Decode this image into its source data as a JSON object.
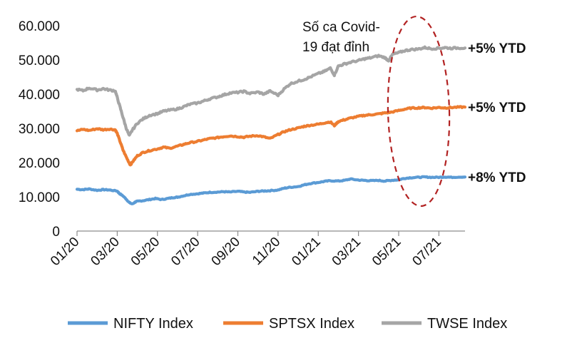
{
  "chart_data": {
    "type": "line",
    "title": "",
    "xlabel": "",
    "ylabel": "",
    "ylim": [
      0,
      60000
    ],
    "y_ticks": [
      0,
      10000,
      20000,
      30000,
      40000,
      50000,
      60000
    ],
    "y_tick_labels": [
      "0",
      "10.000",
      "20.000",
      "30.000",
      "40.000",
      "50.000",
      "60.000"
    ],
    "x_tick_labels": [
      "01/20",
      "03/20",
      "05/20",
      "07/20",
      "09/20",
      "11/20",
      "01/21",
      "03/21",
      "05/21",
      "07/21"
    ],
    "x_range_months": [
      0,
      19.3
    ],
    "series": [
      {
        "name": "NIFTY Index",
        "color": "#5B9BD5",
        "ytd_label": "+8% YTD",
        "points": [
          [
            0,
            12200
          ],
          [
            0.3,
            12100
          ],
          [
            0.6,
            12300
          ],
          [
            1,
            11900
          ],
          [
            1.3,
            12100
          ],
          [
            1.6,
            12000
          ],
          [
            2,
            11700
          ],
          [
            2.1,
            11000
          ],
          [
            2.3,
            10200
          ],
          [
            2.45,
            9300
          ],
          [
            2.6,
            8300
          ],
          [
            2.75,
            7900
          ],
          [
            2.9,
            8500
          ],
          [
            3,
            8700
          ],
          [
            3.3,
            8900
          ],
          [
            3.6,
            9200
          ],
          [
            3.9,
            9500
          ],
          [
            4.2,
            9200
          ],
          [
            4.5,
            9500
          ],
          [
            4.8,
            9800
          ],
          [
            5,
            9900
          ],
          [
            5.3,
            10300
          ],
          [
            5.6,
            10700
          ],
          [
            6,
            10900
          ],
          [
            6.3,
            11100
          ],
          [
            6.6,
            11300
          ],
          [
            7,
            11400
          ],
          [
            7.3,
            11500
          ],
          [
            7.6,
            11400
          ],
          [
            8,
            11600
          ],
          [
            8.3,
            11400
          ],
          [
            8.6,
            11300
          ],
          [
            9,
            11600
          ],
          [
            9.3,
            11700
          ],
          [
            9.6,
            11800
          ],
          [
            10,
            12000
          ],
          [
            10.3,
            12500
          ],
          [
            10.6,
            12800
          ],
          [
            11,
            13000
          ],
          [
            11.3,
            13500
          ],
          [
            11.6,
            13900
          ],
          [
            12,
            14200
          ],
          [
            12.3,
            14500
          ],
          [
            12.6,
            14700
          ],
          [
            13,
            14600
          ],
          [
            13.3,
            14800
          ],
          [
            13.6,
            15200
          ],
          [
            14,
            14900
          ],
          [
            14.3,
            14800
          ],
          [
            14.6,
            14700
          ],
          [
            15,
            14800
          ],
          [
            15.3,
            14600
          ],
          [
            15.6,
            14800
          ],
          [
            16,
            15000
          ],
          [
            16.3,
            15400
          ],
          [
            16.6,
            15600
          ],
          [
            17,
            15700
          ],
          [
            17.3,
            15800
          ],
          [
            17.6,
            15700
          ],
          [
            18,
            15700
          ],
          [
            18.3,
            15800
          ],
          [
            18.6,
            15700
          ],
          [
            19,
            15800
          ],
          [
            19.3,
            15800
          ]
        ]
      },
      {
        "name": "SPTSX Index",
        "color": "#ED7D31",
        "ytd_label": "+5% YTD",
        "points": [
          [
            0,
            29300
          ],
          [
            0.3,
            29700
          ],
          [
            0.6,
            29400
          ],
          [
            1,
            29900
          ],
          [
            1.3,
            29600
          ],
          [
            1.6,
            29800
          ],
          [
            1.9,
            29600
          ],
          [
            2,
            28500
          ],
          [
            2.15,
            26000
          ],
          [
            2.3,
            23500
          ],
          [
            2.5,
            21000
          ],
          [
            2.65,
            19300
          ],
          [
            2.8,
            20500
          ],
          [
            3,
            22000
          ],
          [
            3.3,
            23000
          ],
          [
            3.6,
            23500
          ],
          [
            4,
            24000
          ],
          [
            4.3,
            24500
          ],
          [
            4.6,
            24200
          ],
          [
            5,
            24800
          ],
          [
            5.3,
            25300
          ],
          [
            5.6,
            25800
          ],
          [
            6,
            26200
          ],
          [
            6.3,
            26600
          ],
          [
            6.6,
            27000
          ],
          [
            7,
            27300
          ],
          [
            7.3,
            27600
          ],
          [
            7.6,
            27800
          ],
          [
            8,
            27600
          ],
          [
            8.3,
            27400
          ],
          [
            8.6,
            27700
          ],
          [
            9,
            27900
          ],
          [
            9.3,
            27500
          ],
          [
            9.6,
            27000
          ],
          [
            10,
            28200
          ],
          [
            10.3,
            29000
          ],
          [
            10.6,
            29600
          ],
          [
            11,
            30100
          ],
          [
            11.3,
            30600
          ],
          [
            11.6,
            30900
          ],
          [
            12,
            31200
          ],
          [
            12.3,
            31600
          ],
          [
            12.6,
            31900
          ],
          [
            12.8,
            30800
          ],
          [
            13,
            32000
          ],
          [
            13.3,
            32500
          ],
          [
            13.6,
            33000
          ],
          [
            14,
            33500
          ],
          [
            14.3,
            33800
          ],
          [
            14.6,
            34000
          ],
          [
            15,
            34200
          ],
          [
            15.3,
            34500
          ],
          [
            15.6,
            34700
          ],
          [
            16,
            35200
          ],
          [
            16.3,
            35600
          ],
          [
            16.6,
            35900
          ],
          [
            17,
            36000
          ],
          [
            17.3,
            36100
          ],
          [
            17.6,
            35900
          ],
          [
            18,
            36100
          ],
          [
            18.3,
            36000
          ],
          [
            18.6,
            36100
          ],
          [
            19,
            36200
          ],
          [
            19.3,
            36200
          ]
        ]
      },
      {
        "name": "TWSE Index",
        "color": "#A5A5A5",
        "ytd_label": "+5% YTD",
        "points": [
          [
            0,
            41400
          ],
          [
            0.3,
            41000
          ],
          [
            0.6,
            41800
          ],
          [
            1,
            41200
          ],
          [
            1.3,
            41600
          ],
          [
            1.6,
            41200
          ],
          [
            1.9,
            41000
          ],
          [
            2,
            39000
          ],
          [
            2.15,
            36000
          ],
          [
            2.3,
            33000
          ],
          [
            2.45,
            30000
          ],
          [
            2.6,
            27800
          ],
          [
            2.75,
            29500
          ],
          [
            3,
            31500
          ],
          [
            3.3,
            32800
          ],
          [
            3.6,
            33800
          ],
          [
            4,
            34300
          ],
          [
            4.3,
            35000
          ],
          [
            4.6,
            35300
          ],
          [
            5,
            35700
          ],
          [
            5.3,
            36300
          ],
          [
            5.6,
            37000
          ],
          [
            6,
            37400
          ],
          [
            6.3,
            38000
          ],
          [
            6.6,
            38600
          ],
          [
            7,
            39200
          ],
          [
            7.3,
            39800
          ],
          [
            7.6,
            40300
          ],
          [
            8,
            40500
          ],
          [
            8.3,
            40800
          ],
          [
            8.6,
            40200
          ],
          [
            9,
            40600
          ],
          [
            9.3,
            40000
          ],
          [
            9.6,
            40900
          ],
          [
            10,
            39700
          ],
          [
            10.3,
            41500
          ],
          [
            10.6,
            43000
          ],
          [
            11,
            43800
          ],
          [
            11.3,
            44300
          ],
          [
            11.6,
            45000
          ],
          [
            12,
            46000
          ],
          [
            12.3,
            46600
          ],
          [
            12.6,
            47600
          ],
          [
            12.8,
            45600
          ],
          [
            13,
            48200
          ],
          [
            13.3,
            48800
          ],
          [
            13.6,
            49300
          ],
          [
            14,
            49800
          ],
          [
            14.3,
            50300
          ],
          [
            14.6,
            50600
          ],
          [
            15,
            51200
          ],
          [
            15.3,
            50700
          ],
          [
            15.5,
            49800
          ],
          [
            15.7,
            51600
          ],
          [
            16,
            52100
          ],
          [
            16.3,
            52700
          ],
          [
            16.6,
            53000
          ],
          [
            17,
            53200
          ],
          [
            17.3,
            53600
          ],
          [
            17.6,
            53300
          ],
          [
            18,
            53400
          ],
          [
            18.3,
            53600
          ],
          [
            18.6,
            53400
          ],
          [
            19,
            53500
          ],
          [
            19.3,
            53500
          ]
        ]
      }
    ],
    "annotations": [
      {
        "text_lines": [
          "Số ca Covid-",
          "19 đạt đỉnh"
        ],
        "shape": "dashed-ellipse",
        "color": "#B22222"
      }
    ],
    "legend_position": "bottom"
  }
}
